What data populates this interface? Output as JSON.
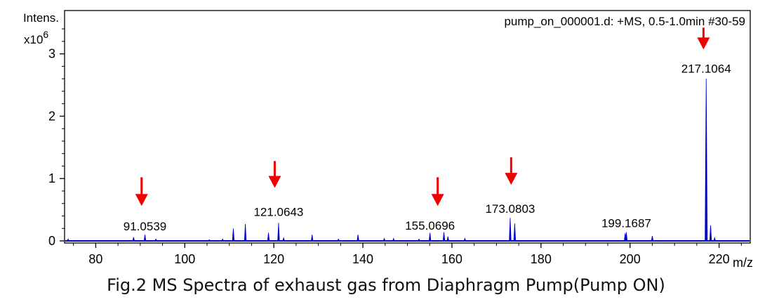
{
  "chart_data": {
    "type": "bar",
    "title": "pump_on_000001.d: +MS, 0.5-1.0min #30-59",
    "ylabel_line1": "Intens.",
    "ylabel_multiplier": "x10",
    "ylabel_exponent": "6",
    "xlabel": "m/z",
    "xlim": [
      73,
      227
    ],
    "ylim": [
      0,
      3.5
    ],
    "x_ticks": [
      80,
      100,
      120,
      140,
      160,
      180,
      200,
      220
    ],
    "x_tick_labels": [
      "80",
      "100",
      "120",
      "140",
      "160",
      "180",
      "200",
      "220"
    ],
    "y_ticks": [
      0,
      1,
      2,
      3
    ],
    "y_tick_labels": [
      "0",
      "1",
      "2",
      "3"
    ],
    "series_color": "#0000cc",
    "arrow_color": "#ee0000",
    "peaks": [
      {
        "mz": 73.8,
        "intensity": 0.03
      },
      {
        "mz": 88.5,
        "intensity": 0.06
      },
      {
        "mz": 91.0539,
        "intensity": 0.1
      },
      {
        "mz": 93.5,
        "intensity": 0.03
      },
      {
        "mz": 105.5,
        "intensity": 0.02
      },
      {
        "mz": 108.5,
        "intensity": 0.03
      },
      {
        "mz": 110.9,
        "intensity": 0.2
      },
      {
        "mz": 113.6,
        "intensity": 0.27
      },
      {
        "mz": 118.8,
        "intensity": 0.13
      },
      {
        "mz": 121.0643,
        "intensity": 0.29
      },
      {
        "mz": 122.2,
        "intensity": 0.05
      },
      {
        "mz": 128.6,
        "intensity": 0.1
      },
      {
        "mz": 134.5,
        "intensity": 0.03
      },
      {
        "mz": 138.9,
        "intensity": 0.1
      },
      {
        "mz": 144.8,
        "intensity": 0.04
      },
      {
        "mz": 146.9,
        "intensity": 0.04
      },
      {
        "mz": 152.6,
        "intensity": 0.03
      },
      {
        "mz": 155.0696,
        "intensity": 0.13
      },
      {
        "mz": 158.2,
        "intensity": 0.14
      },
      {
        "mz": 159.1,
        "intensity": 0.07
      },
      {
        "mz": 162.9,
        "intensity": 0.04
      },
      {
        "mz": 173.0803,
        "intensity": 0.37
      },
      {
        "mz": 174.1,
        "intensity": 0.28
      },
      {
        "mz": 198.9,
        "intensity": 0.12
      },
      {
        "mz": 199.1687,
        "intensity": 0.14
      },
      {
        "mz": 205.0,
        "intensity": 0.08
      },
      {
        "mz": 217.1064,
        "intensity": 2.6
      },
      {
        "mz": 218.1,
        "intensity": 0.25
      },
      {
        "mz": 219.0,
        "intensity": 0.05
      }
    ],
    "annotations": [
      {
        "label": "91.0539",
        "mz": 91.0539,
        "label_intensity": 0.17
      },
      {
        "label": "121.0643",
        "mz": 121.0643,
        "label_intensity": 0.4
      },
      {
        "label": "155.0696",
        "mz": 155.0696,
        "label_intensity": 0.18
      },
      {
        "label": "173.0803",
        "mz": 173.0803,
        "label_intensity": 0.45
      },
      {
        "label": "199.1687",
        "mz": 199.1687,
        "label_intensity": 0.22
      },
      {
        "label": "217.1064",
        "mz": 217.1064,
        "label_intensity": 2.7
      }
    ],
    "arrows": [
      {
        "mz": 90.3,
        "tip_intensity": 0.56,
        "tail_intensity": 1.02
      },
      {
        "mz": 120.2,
        "tip_intensity": 0.85,
        "tail_intensity": 1.28
      },
      {
        "mz": 156.8,
        "tip_intensity": 0.56,
        "tail_intensity": 1.02
      },
      {
        "mz": 173.3,
        "tip_intensity": 0.9,
        "tail_intensity": 1.34
      },
      {
        "mz": 216.5,
        "tip_intensity": 3.07,
        "tail_intensity": 3.42
      }
    ]
  },
  "caption": "Fig.2 MS Spectra of exhaust gas from Diaphragm Pump(Pump ON)"
}
